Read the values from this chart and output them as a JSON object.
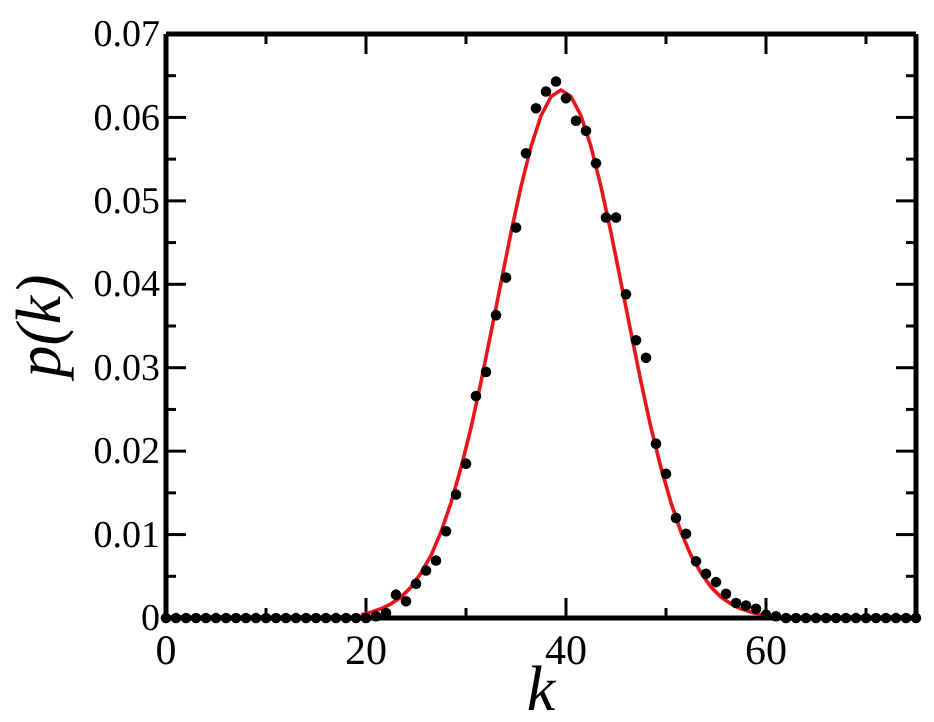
{
  "chart_data": {
    "type": "scatter",
    "xlabel": "k",
    "ylabel": "p(k)",
    "xlim": [
      0,
      75
    ],
    "ylim": [
      0,
      0.07
    ],
    "xticks": [
      0,
      {
        "value": 10,
        "label": null
      },
      20,
      {
        "value": 30,
        "label": null
      },
      40,
      {
        "value": 50,
        "label": null
      },
      60,
      {
        "value": 70,
        "label": null
      }
    ],
    "yticks": [
      0,
      {
        "value": 0.005,
        "label": null
      },
      0.01,
      {
        "value": 0.015,
        "label": null
      },
      0.02,
      {
        "value": 0.025,
        "label": null
      },
      0.03,
      {
        "value": 0.035,
        "label": null
      },
      0.04,
      {
        "value": 0.045,
        "label": null
      },
      0.05,
      {
        "value": 0.055,
        "label": null
      },
      0.06,
      {
        "value": 0.065,
        "label": null
      },
      0.07
    ],
    "grid": false,
    "series": [
      {
        "type": "line",
        "color": "#e8161b",
        "marker": "none",
        "line_style": "solid",
        "x": [
          19.5,
          20.5,
          21.5,
          22.5,
          23.5,
          24.5,
          25.5,
          26.5,
          27.5,
          28.5,
          29.5,
          30.5,
          31.5,
          32.5,
          33.5,
          34.5,
          35.5,
          36.5,
          37.5,
          38.5,
          39.5,
          40.5,
          41.5,
          42.5,
          43.5,
          44.5,
          45.5,
          46.5,
          47.5,
          48.5,
          49.5,
          50.5,
          51.5,
          52.5,
          53.5,
          54.5,
          55.5,
          56.5,
          57.5,
          58.5,
          59.5
        ],
        "values": [
          0.0004,
          0.0007,
          0.0011,
          0.0017,
          0.0025,
          0.0037,
          0.0054,
          0.0075,
          0.0103,
          0.0138,
          0.018,
          0.0228,
          0.0283,
          0.0342,
          0.0402,
          0.0462,
          0.0517,
          0.0565,
          0.0602,
          0.0625,
          0.0633,
          0.0625,
          0.0602,
          0.0565,
          0.0517,
          0.0462,
          0.0402,
          0.0342,
          0.0283,
          0.0228,
          0.018,
          0.0138,
          0.0103,
          0.0075,
          0.0054,
          0.0037,
          0.0025,
          0.0017,
          0.0011,
          0.0007,
          0.0004
        ]
      },
      {
        "color": "#000000",
        "marker": "circle",
        "x": [
          0,
          1,
          2,
          3,
          4,
          5,
          6,
          7,
          8,
          9,
          10,
          11,
          12,
          13,
          14,
          15,
          16,
          17,
          18,
          19,
          20,
          21,
          22,
          23,
          24,
          25,
          26,
          27,
          28,
          29,
          30,
          31,
          32,
          33,
          34,
          35,
          36,
          37,
          38,
          39,
          40,
          41,
          42,
          43,
          44,
          45,
          46,
          47,
          48,
          49,
          50,
          51,
          52,
          53,
          54,
          55,
          56,
          57,
          58,
          59,
          60,
          61,
          62,
          63,
          64,
          65,
          66,
          67,
          68,
          69,
          70,
          71,
          72,
          73,
          74,
          75
        ],
        "values": [
          0,
          0,
          0,
          0,
          0,
          0,
          0,
          0,
          0,
          0,
          0,
          0,
          0,
          0,
          0,
          0,
          0,
          0,
          0,
          0,
          0,
          0.0002,
          0.0006,
          0.0028,
          0.002,
          0.0041,
          0.0057,
          0.0069,
          0.0104,
          0.0148,
          0.0185,
          0.0266,
          0.0295,
          0.0363,
          0.0408,
          0.0468,
          0.0557,
          0.0611,
          0.0631,
          0.0643,
          0.0623,
          0.0596,
          0.0584,
          0.0545,
          0.048,
          0.048,
          0.0388,
          0.0333,
          0.0312,
          0.0209,
          0.0173,
          0.012,
          0.0101,
          0.0068,
          0.0053,
          0.0043,
          0.0029,
          0.0018,
          0.0015,
          0.0011,
          0.0004,
          0.0002,
          0,
          0,
          0,
          0,
          0,
          0,
          0,
          0,
          0,
          0,
          0,
          0,
          0,
          0
        ]
      }
    ]
  }
}
